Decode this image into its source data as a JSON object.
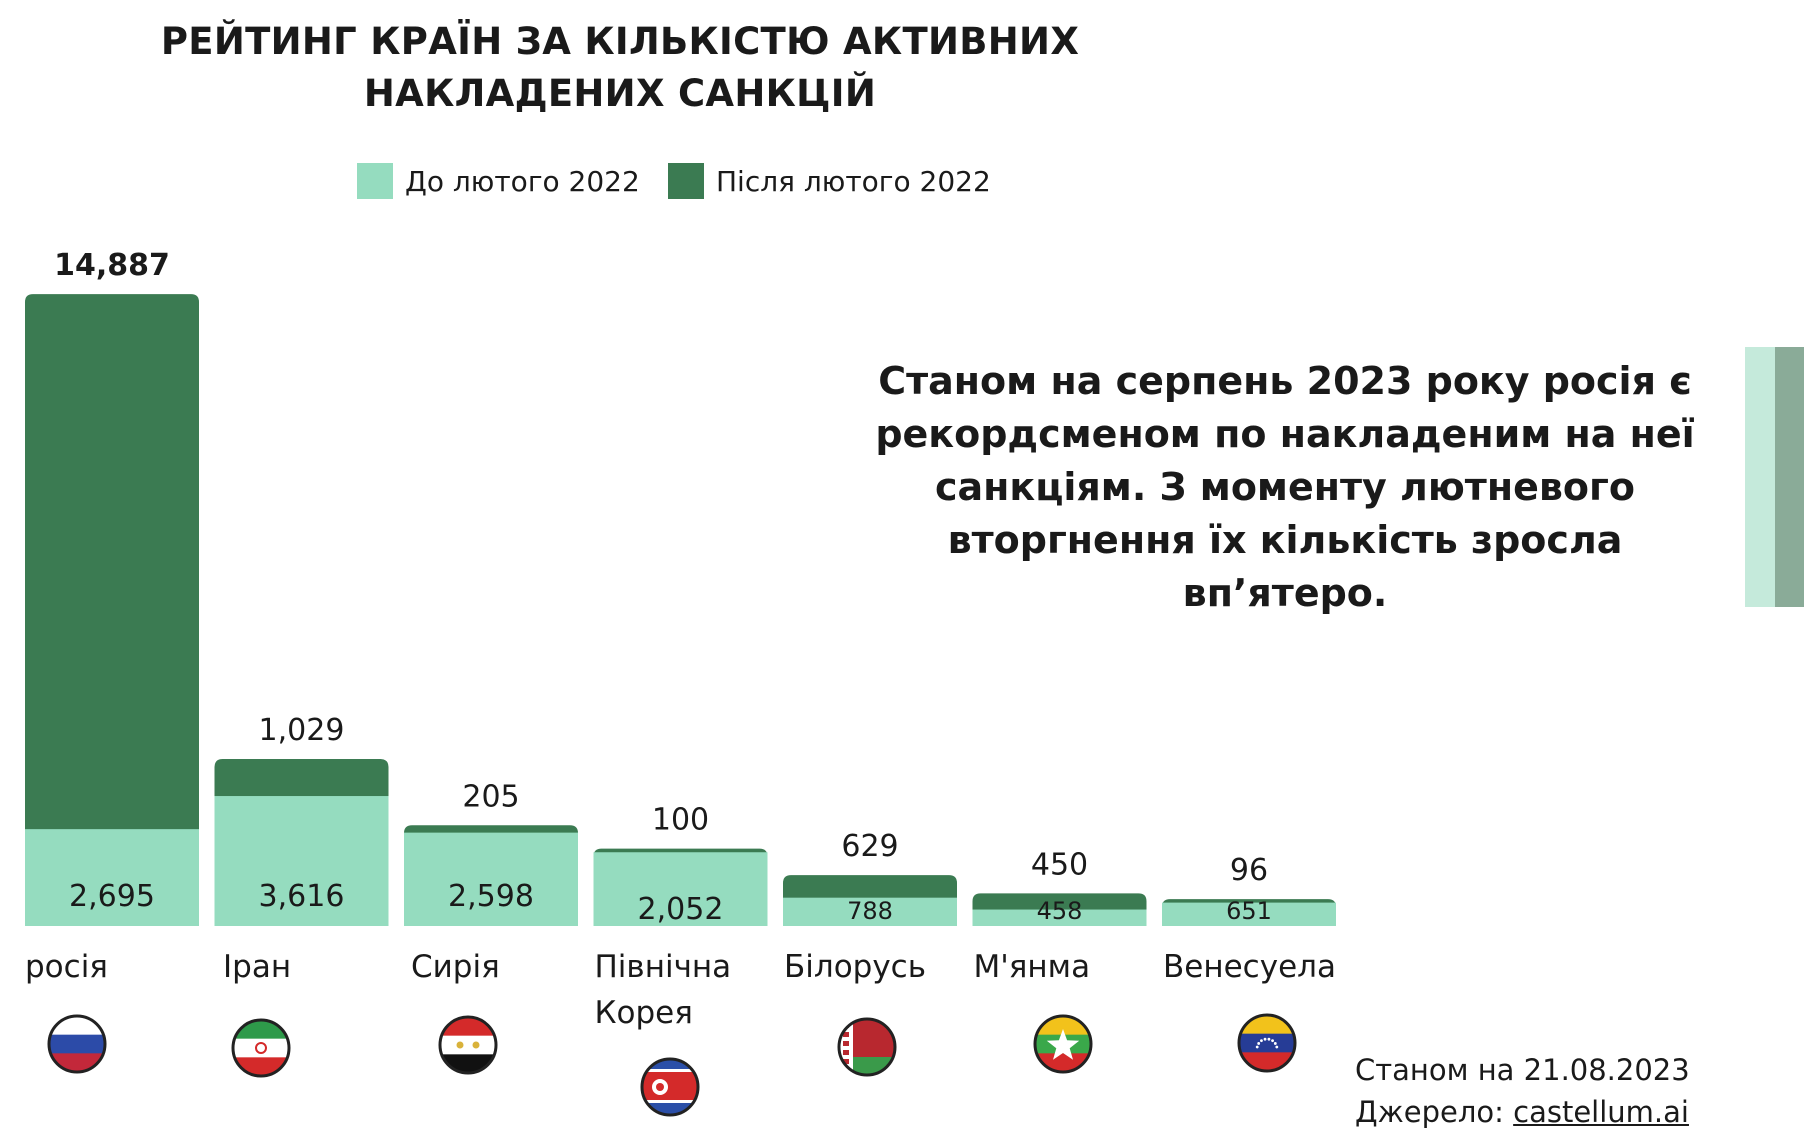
{
  "chart_data": {
    "type": "bar",
    "title": "РЕЙТИНГ КРАЇН ЗА КІЛЬКІСТЮ АКТИВНИХ НАКЛАДЕНИХ САНКЦІЙ",
    "categories": [
      "росія",
      "Іран",
      "Сирія",
      "Північна Корея",
      "Білорусь",
      "М'янма",
      "Венесуела"
    ],
    "category_lines": [
      [
        "росія"
      ],
      [
        "Іран"
      ],
      [
        "Сирія"
      ],
      [
        "Північна",
        "Корея"
      ],
      [
        "Білорусь"
      ],
      [
        "М'янма"
      ],
      [
        "Венесуела"
      ]
    ],
    "series": [
      {
        "name": "До лютого 2022",
        "color": "#95dcbf",
        "values": [
          2695,
          3616,
          2598,
          2052,
          788,
          458,
          651
        ]
      },
      {
        "name": "Після лютого 2022",
        "color": "#3b7b52",
        "values": [
          14887,
          1029,
          205,
          100,
          629,
          450,
          96
        ]
      }
    ],
    "value_labels_before": [
      "2,695",
      "3,616",
      "2,598",
      "2,052",
      "788",
      "458",
      "651"
    ],
    "value_labels_after": [
      "14,887",
      "1,029",
      "205",
      "100",
      "629",
      "450",
      "96"
    ],
    "stacked": true,
    "legend_position": "top",
    "grid": false
  },
  "legend": {
    "before_label": "До лютого 2022",
    "after_label": "Після лютого 2022"
  },
  "annotation": "Станом на серпень 2023 року росія є рекордсменом по накладеним на неї санкціям. З моменту лютневого вторгнення їх кількість зросла вп’ятеро.",
  "footer": {
    "date_text": "Станом на 21.08.2023",
    "source_prefix": "Джерело: ",
    "source_link": "castellum.ai"
  },
  "flags": [
    "russia-flag-icon",
    "iran-flag-icon",
    "syria-flag-icon",
    "north-korea-flag-icon",
    "belarus-flag-icon",
    "myanmar-flag-icon",
    "venezuela-flag-icon"
  ],
  "colors": {
    "before": "#95dcbf",
    "after": "#3b7b52",
    "deco_light": "#c5eadb",
    "deco_dark": "#8aab98"
  }
}
